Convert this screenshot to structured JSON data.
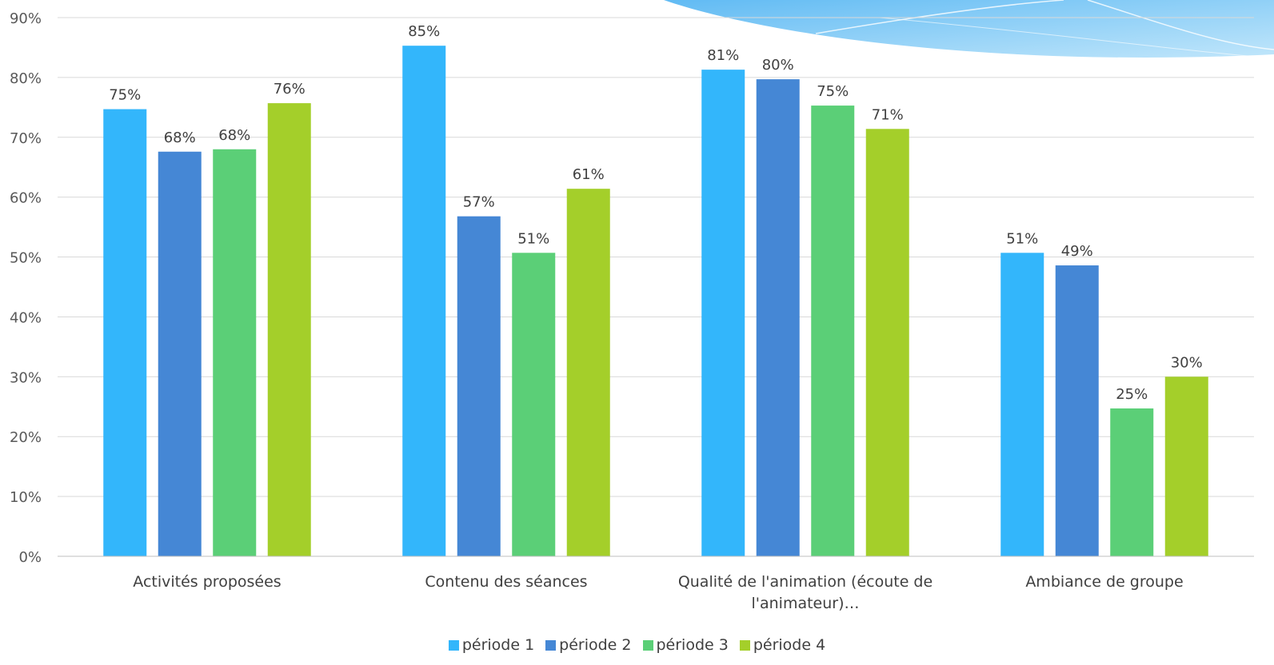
{
  "chart_data": {
    "type": "bar",
    "title": "",
    "xlabel": "",
    "ylabel": "",
    "ylim": [
      0,
      90
    ],
    "y_ticks": [
      0,
      10,
      20,
      30,
      40,
      50,
      60,
      70,
      80,
      90
    ],
    "y_tick_format": "{v}%",
    "grid": true,
    "legend_position": "bottom",
    "categories": [
      "Activités proposées",
      "Contenu des séances",
      "Qualité de l'animation (écoute de l'animateur)…",
      "Ambiance de groupe"
    ],
    "category_lines": [
      [
        "Activités proposées"
      ],
      [
        "Contenu des séances"
      ],
      [
        "Qualité de l'animation (écoute de",
        "l'animateur)…"
      ],
      [
        "Ambiance de groupe"
      ]
    ],
    "series": [
      {
        "name": "période 1",
        "color": "#33b6fb",
        "values": [
          74.7,
          85.3,
          81.3,
          50.7
        ],
        "labels": [
          "75%",
          "85%",
          "81%",
          "51%"
        ]
      },
      {
        "name": "période 2",
        "color": "#4587d5",
        "values": [
          67.6,
          56.8,
          79.7,
          48.6
        ],
        "labels": [
          "68%",
          "57%",
          "80%",
          "49%"
        ]
      },
      {
        "name": "période 3",
        "color": "#5bcf77",
        "values": [
          68.0,
          50.7,
          75.3,
          24.7
        ],
        "labels": [
          "68%",
          "51%",
          "75%",
          "25%"
        ]
      },
      {
        "name": "période 4",
        "color": "#a4cf2a",
        "values": [
          75.7,
          61.4,
          71.4,
          30.0
        ],
        "labels": [
          "76%",
          "61%",
          "71%",
          "30%"
        ]
      }
    ]
  }
}
